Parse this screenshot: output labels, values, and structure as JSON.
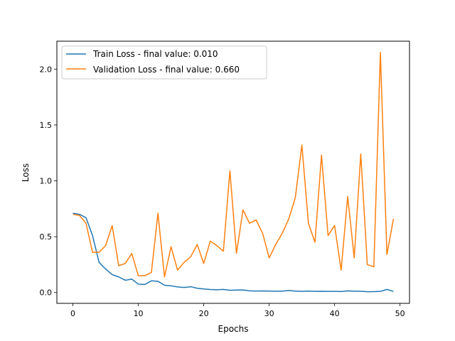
{
  "chart_data": {
    "type": "line",
    "title": "",
    "xlabel": "Epochs",
    "ylabel": "Loss",
    "xlim": [
      -2.45,
      51.45
    ],
    "ylim": [
      -0.097,
      2.25
    ],
    "xticks": [
      0,
      10,
      20,
      30,
      40,
      50
    ],
    "yticks": [
      0.0,
      0.5,
      1.0,
      1.5,
      2.0
    ],
    "xtick_labels": [
      "0",
      "10",
      "20",
      "30",
      "40",
      "50"
    ],
    "ytick_labels": [
      "0.0",
      "0.5",
      "1.0",
      "1.5",
      "2.0"
    ],
    "grid": false,
    "legend_position": "upper-left",
    "x": [
      0,
      1,
      2,
      3,
      4,
      5,
      6,
      7,
      8,
      9,
      10,
      11,
      12,
      13,
      14,
      15,
      16,
      17,
      18,
      19,
      20,
      21,
      22,
      23,
      24,
      25,
      26,
      27,
      28,
      29,
      30,
      31,
      32,
      33,
      34,
      35,
      36,
      37,
      38,
      39,
      40,
      41,
      42,
      43,
      44,
      45,
      46,
      47,
      48,
      49
    ],
    "series": [
      {
        "name": "Train Loss - final value: 0.010",
        "color": "#1f77b4",
        "values": [
          0.71,
          0.7,
          0.67,
          0.51,
          0.27,
          0.21,
          0.16,
          0.14,
          0.11,
          0.12,
          0.075,
          0.072,
          0.105,
          0.1,
          0.065,
          0.06,
          0.05,
          0.045,
          0.052,
          0.038,
          0.032,
          0.027,
          0.025,
          0.028,
          0.02,
          0.022,
          0.023,
          0.015,
          0.013,
          0.014,
          0.013,
          0.012,
          0.012,
          0.018,
          0.013,
          0.01,
          0.013,
          0.01,
          0.011,
          0.01,
          0.01,
          0.009,
          0.014,
          0.012,
          0.011,
          0.007,
          0.008,
          0.01,
          0.028,
          0.01
        ]
      },
      {
        "name": "Validation Loss - final value: 0.660",
        "color": "#ff7f0e",
        "values": [
          0.7,
          0.69,
          0.62,
          0.36,
          0.36,
          0.42,
          0.6,
          0.24,
          0.26,
          0.35,
          0.15,
          0.15,
          0.18,
          0.71,
          0.14,
          0.41,
          0.2,
          0.27,
          0.32,
          0.43,
          0.26,
          0.46,
          0.42,
          0.37,
          1.09,
          0.35,
          0.74,
          0.62,
          0.65,
          0.53,
          0.31,
          0.43,
          0.53,
          0.66,
          0.85,
          1.32,
          0.62,
          0.45,
          1.23,
          0.51,
          0.6,
          0.2,
          0.86,
          0.31,
          1.24,
          0.25,
          0.23,
          2.15,
          0.34,
          0.66
        ]
      }
    ]
  }
}
